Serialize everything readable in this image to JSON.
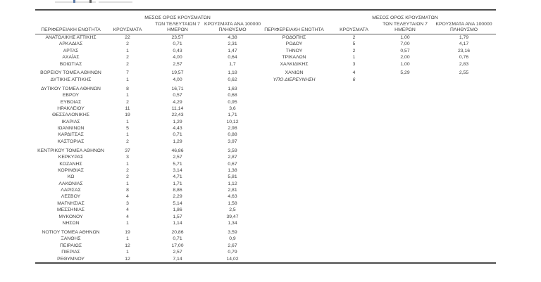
{
  "colors": {
    "background": "#ffffff",
    "text": "#3f3f3f",
    "rule": "#4c4c4c"
  },
  "table": {
    "headers": {
      "region": "ΠΕΡΙΦΕΡΕΙΑΚΗ ΕΝΟΤΗΤΑ",
      "cases": "ΚΡΟΥΣΜΑΤΑ",
      "avg7_line1": "ΜΕΣΟΣ ΟΡΟΣ ΚΡΟΥΣΜΑΤΩΝ",
      "avg7_line2": "ΤΩΝ ΤΕΛΕΥΤΑΙΩΝ 7",
      "avg7_line3": "ΗΜΕΡΩΝ",
      "per100k_line1": "ΚΡΟΥΣΜΑΤΑ ΑΝΑ 100000",
      "per100k_line2": "ΠΛΗΘΥΣΜΟ"
    },
    "left_rows": [
      {
        "name": "ΑΝΑΤΟΛΙΚΗΣ ΑΤΤΙΚΗΣ",
        "cases": "22",
        "avg7": "23,57",
        "per100k": "4,38"
      },
      {
        "name": "ΑΡΚΑΔΙΑΣ",
        "cases": "2",
        "avg7": "0,71",
        "per100k": "2,31"
      },
      {
        "name": "ΑΡΤΑΣ",
        "cases": "1",
        "avg7": "0,43",
        "per100k": "1,47"
      },
      {
        "name": "ΑΧΑΪΑΣ",
        "cases": "2",
        "avg7": "4,00",
        "per100k": "0,64"
      },
      {
        "name": "ΒΟΙΩΤΙΑΣ",
        "cases": "2",
        "avg7": "2,57",
        "per100k": "1,7"
      },
      {
        "spacer": true
      },
      {
        "name": "ΒΟΡΕΙΟΥ ΤΟΜΕΑ ΑΘΗΝΩΝ",
        "cases": "7",
        "avg7": "19,57",
        "per100k": "1,18"
      },
      {
        "name": "ΔΥΤΙΚΗΣ ΑΤΤΙΚΗΣ",
        "cases": "1",
        "avg7": "4,00",
        "per100k": "0,62"
      },
      {
        "spacer": true
      },
      {
        "name": "ΔΥΤΙΚΟΥ ΤΟΜΕΑ ΑΘΗΝΩΝ",
        "cases": "8",
        "avg7": "16,71",
        "per100k": "1,63"
      },
      {
        "name": "ΕΒΡΟΥ",
        "cases": "1",
        "avg7": "0,57",
        "per100k": "0,68"
      },
      {
        "name": "ΕΥΒΟΙΑΣ",
        "cases": "2",
        "avg7": "4,29",
        "per100k": "0,95"
      },
      {
        "name": "ΗΡΑΚΛΕΙΟΥ",
        "cases": "11",
        "avg7": "11,14",
        "per100k": "3,6"
      },
      {
        "name": "ΘΕΣΣΑΛΟΝΙΚΗΣ",
        "cases": "19",
        "avg7": "22,43",
        "per100k": "1,71"
      },
      {
        "name": "ΙΚΑΡΙΑΣ",
        "cases": "1",
        "avg7": "1,29",
        "per100k": "10,12"
      },
      {
        "name": "ΙΩΑΝΝΙΝΩΝ",
        "cases": "5",
        "avg7": "4,43",
        "per100k": "2,98"
      },
      {
        "name": "ΚΑΡΔΙΤΣΑΣ",
        "cases": "1",
        "avg7": "0,71",
        "per100k": "0,88"
      },
      {
        "name": "ΚΑΣΤΟΡΙΑΣ",
        "cases": "2",
        "avg7": "1,29",
        "per100k": "3,97"
      },
      {
        "spacer": true
      },
      {
        "name": "ΚΕΝΤΡΙΚΟΥ ΤΟΜΕΑ ΑΘΗΝΩΝ",
        "cases": "37",
        "avg7": "46,86",
        "per100k": "3,59"
      },
      {
        "name": "ΚΕΡΚΥΡΑΣ",
        "cases": "3",
        "avg7": "2,57",
        "per100k": "2,87"
      },
      {
        "name": "ΚΟΖΑΝΗΣ",
        "cases": "1",
        "avg7": "5,71",
        "per100k": "0,67"
      },
      {
        "name": "ΚΟΡΙΝΘΙΑΣ",
        "cases": "2",
        "avg7": "3,14",
        "per100k": "1,38"
      },
      {
        "name": "ΚΩ",
        "cases": "2",
        "avg7": "4,71",
        "per100k": "5,81"
      },
      {
        "name": "ΛΑΚΩΝΙΑΣ",
        "cases": "1",
        "avg7": "1,71",
        "per100k": "1,12"
      },
      {
        "name": "ΛΑΡΙΣΑΣ",
        "cases": "8",
        "avg7": "8,86",
        "per100k": "2,81"
      },
      {
        "name": "ΛΕΣΒΟΥ",
        "cases": "4",
        "avg7": "2,29",
        "per100k": "4,63"
      },
      {
        "name": "ΜΑΓΝΗΣΙΑΣ",
        "cases": "3",
        "avg7": "5,14",
        "per100k": "1,58"
      },
      {
        "name": "ΜΕΣΣΗΝΙΑΣ",
        "cases": "4",
        "avg7": "1,86",
        "per100k": "2,5"
      },
      {
        "name": "ΜΥΚΟΝΟΥ",
        "cases": "4",
        "avg7": "1,57",
        "per100k": "39,47"
      },
      {
        "name": "ΝΗΣΩΝ",
        "cases": "1",
        "avg7": "1,14",
        "per100k": "1,34"
      },
      {
        "spacer": true
      },
      {
        "name": "ΝΟΤΙΟΥ ΤΟΜΕΑ ΑΘΗΝΩΝ",
        "cases": "19",
        "avg7": "20,86",
        "per100k": "3,59"
      },
      {
        "name": "ΞΑΝΘΗΣ",
        "cases": "1",
        "avg7": "0,71",
        "per100k": "0,9"
      },
      {
        "name": "ΠΕΙΡΑΙΩΣ",
        "cases": "12",
        "avg7": "17,00",
        "per100k": "2,67"
      },
      {
        "name": "ΠΙΕΡΙΑΣ",
        "cases": "1",
        "avg7": "2,57",
        "per100k": "0,79"
      },
      {
        "name": "ΡΕΘΥΜΝΟΥ",
        "cases": "12",
        "avg7": "7,14",
        "per100k": "14,02"
      }
    ],
    "right_rows": [
      {
        "name": "ΡΟΔΟΠΗΣ",
        "cases": "2",
        "avg7": "1,00",
        "per100k": "1,79"
      },
      {
        "name": "ΡΟΔΟΥ",
        "cases": "5",
        "avg7": "7,00",
        "per100k": "4,17"
      },
      {
        "name": "ΤΗΝΟΥ",
        "cases": "2",
        "avg7": "0,57",
        "per100k": "23,16"
      },
      {
        "name": "ΤΡΙΚΑΛΩΝ",
        "cases": "1",
        "avg7": "2,00",
        "per100k": "0,76"
      },
      {
        "name": "ΧΑΛΚΙΔΙΚΗΣ",
        "cases": "3",
        "avg7": "1,00",
        "per100k": "2,83"
      },
      {
        "spacer": true
      },
      {
        "name": "ΧΑΝΙΩΝ",
        "cases": "4",
        "avg7": "5,29",
        "per100k": "2,55"
      },
      {
        "name": "ΥΠΟ ΔΙΕΡΕΥΝΗΣΗ",
        "cases": "6",
        "avg7": "",
        "per100k": "",
        "italic": true
      }
    ]
  }
}
